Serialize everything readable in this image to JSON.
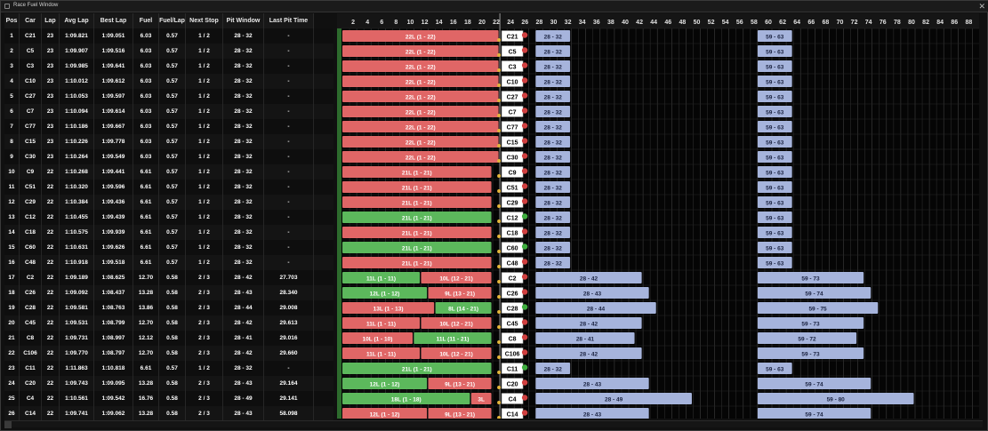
{
  "window": {
    "title": "Race Fuel Window",
    "close": "✕"
  },
  "columns": [
    "Pos",
    "Car",
    "Lap",
    "Avg Lap",
    "Best Lap",
    "Fuel",
    "Fuel/Lap",
    "Next Stop",
    "Pit Window",
    "Last Pit Time"
  ],
  "colors": {
    "green": "#5cb85c",
    "red": "#e06666",
    "window": "#a6b4dc",
    "grid": "#2d2d2d",
    "gridMajor": "#3f3f3f"
  },
  "lap_axis": {
    "min": 1,
    "max": 90,
    "ticks": [
      2,
      4,
      6,
      8,
      10,
      12,
      14,
      16,
      18,
      20,
      22,
      24,
      26,
      28,
      30,
      32,
      34,
      36,
      38,
      40,
      42,
      44,
      46,
      48,
      50,
      52,
      54,
      56,
      58,
      60,
      62,
      64,
      66,
      68,
      70,
      72,
      74,
      76,
      78,
      80,
      82,
      84,
      86,
      88,
      90
    ],
    "current_lap": 22
  },
  "rows": [
    {
      "pos": "1",
      "car": "C21",
      "lap": "23",
      "avg": "1:09.821",
      "best": "1:09.051",
      "fuel": "6.03",
      "fpl": "0.57",
      "next": "1 / 2",
      "pit": "28 - 32",
      "last": "-",
      "stints": [
        {
          "label": "22L (1 - 22)",
          "color": "red",
          "from": 1,
          "to": 22
        }
      ],
      "badge": "C21",
      "pip": "red",
      "windows": [
        {
          "label": "28 - 32",
          "from": 28,
          "to": 32
        },
        {
          "label": "59 - 63",
          "from": 59,
          "to": 63
        }
      ]
    },
    {
      "pos": "2",
      "car": "C5",
      "lap": "23",
      "avg": "1:09.907",
      "best": "1:09.516",
      "fuel": "6.03",
      "fpl": "0.57",
      "next": "1 / 2",
      "pit": "28 - 32",
      "last": "-",
      "stints": [
        {
          "label": "22L (1 - 22)",
          "color": "red",
          "from": 1,
          "to": 22
        }
      ],
      "badge": "C5",
      "pip": "red",
      "windows": [
        {
          "label": "28 - 32",
          "from": 28,
          "to": 32
        },
        {
          "label": "59 - 63",
          "from": 59,
          "to": 63
        }
      ]
    },
    {
      "pos": "3",
      "car": "C3",
      "lap": "23",
      "avg": "1:09.985",
      "best": "1:09.641",
      "fuel": "6.03",
      "fpl": "0.57",
      "next": "1 / 2",
      "pit": "28 - 32",
      "last": "-",
      "stints": [
        {
          "label": "22L (1 - 22)",
          "color": "red",
          "from": 1,
          "to": 22
        }
      ],
      "badge": "C3",
      "pip": "red",
      "windows": [
        {
          "label": "28 - 32",
          "from": 28,
          "to": 32
        },
        {
          "label": "59 - 63",
          "from": 59,
          "to": 63
        }
      ]
    },
    {
      "pos": "4",
      "car": "C10",
      "lap": "23",
      "avg": "1:10.012",
      "best": "1:09.612",
      "fuel": "6.03",
      "fpl": "0.57",
      "next": "1 / 2",
      "pit": "28 - 32",
      "last": "-",
      "stints": [
        {
          "label": "22L (1 - 22)",
          "color": "red",
          "from": 1,
          "to": 22
        }
      ],
      "badge": "C10",
      "pip": "red",
      "windows": [
        {
          "label": "28 - 32",
          "from": 28,
          "to": 32
        },
        {
          "label": "59 - 63",
          "from": 59,
          "to": 63
        }
      ]
    },
    {
      "pos": "5",
      "car": "C27",
      "lap": "23",
      "avg": "1:10.053",
      "best": "1:09.597",
      "fuel": "6.03",
      "fpl": "0.57",
      "next": "1 / 2",
      "pit": "28 - 32",
      "last": "-",
      "stints": [
        {
          "label": "22L (1 - 22)",
          "color": "red",
          "from": 1,
          "to": 22
        }
      ],
      "badge": "C27",
      "pip": "red",
      "windows": [
        {
          "label": "28 - 32",
          "from": 28,
          "to": 32
        },
        {
          "label": "59 - 63",
          "from": 59,
          "to": 63
        }
      ]
    },
    {
      "pos": "6",
      "car": "C7",
      "lap": "23",
      "avg": "1:10.094",
      "best": "1:09.614",
      "fuel": "6.03",
      "fpl": "0.57",
      "next": "1 / 2",
      "pit": "28 - 32",
      "last": "-",
      "stints": [
        {
          "label": "22L (1 - 22)",
          "color": "red",
          "from": 1,
          "to": 22
        }
      ],
      "badge": "C7",
      "pip": "red",
      "windows": [
        {
          "label": "28 - 32",
          "from": 28,
          "to": 32
        },
        {
          "label": "59 - 63",
          "from": 59,
          "to": 63
        }
      ]
    },
    {
      "pos": "7",
      "car": "C77",
      "lap": "23",
      "avg": "1:10.186",
      "best": "1:09.667",
      "fuel": "6.03",
      "fpl": "0.57",
      "next": "1 / 2",
      "pit": "28 - 32",
      "last": "-",
      "stints": [
        {
          "label": "22L (1 - 22)",
          "color": "red",
          "from": 1,
          "to": 22
        }
      ],
      "badge": "C77",
      "pip": "red",
      "windows": [
        {
          "label": "28 - 32",
          "from": 28,
          "to": 32
        },
        {
          "label": "59 - 63",
          "from": 59,
          "to": 63
        }
      ]
    },
    {
      "pos": "8",
      "car": "C15",
      "lap": "23",
      "avg": "1:10.226",
      "best": "1:09.778",
      "fuel": "6.03",
      "fpl": "0.57",
      "next": "1 / 2",
      "pit": "28 - 32",
      "last": "-",
      "stints": [
        {
          "label": "22L (1 - 22)",
          "color": "red",
          "from": 1,
          "to": 22
        }
      ],
      "badge": "C15",
      "pip": "red",
      "windows": [
        {
          "label": "28 - 32",
          "from": 28,
          "to": 32
        },
        {
          "label": "59 - 63",
          "from": 59,
          "to": 63
        }
      ]
    },
    {
      "pos": "9",
      "car": "C30",
      "lap": "23",
      "avg": "1:10.264",
      "best": "1:09.549",
      "fuel": "6.03",
      "fpl": "0.57",
      "next": "1 / 2",
      "pit": "28 - 32",
      "last": "-",
      "stints": [
        {
          "label": "22L (1 - 22)",
          "color": "red",
          "from": 1,
          "to": 22
        }
      ],
      "badge": "C30",
      "pip": "red",
      "windows": [
        {
          "label": "28 - 32",
          "from": 28,
          "to": 32
        },
        {
          "label": "59 - 63",
          "from": 59,
          "to": 63
        }
      ]
    },
    {
      "pos": "10",
      "car": "C9",
      "lap": "22",
      "avg": "1:10.268",
      "best": "1:09.441",
      "fuel": "6.61",
      "fpl": "0.57",
      "next": "1 / 2",
      "pit": "28 - 32",
      "last": "-",
      "stints": [
        {
          "label": "21L (1 - 21)",
          "color": "red",
          "from": 1,
          "to": 21
        }
      ],
      "badge": "C9",
      "pip": "red",
      "windows": [
        {
          "label": "28 - 32",
          "from": 28,
          "to": 32
        },
        {
          "label": "59 - 63",
          "from": 59,
          "to": 63
        }
      ]
    },
    {
      "pos": "11",
      "car": "C51",
      "lap": "22",
      "avg": "1:10.320",
      "best": "1:09.596",
      "fuel": "6.61",
      "fpl": "0.57",
      "next": "1 / 2",
      "pit": "28 - 32",
      "last": "-",
      "stints": [
        {
          "label": "21L (1 - 21)",
          "color": "red",
          "from": 1,
          "to": 21
        }
      ],
      "badge": "C51",
      "pip": "red",
      "windows": [
        {
          "label": "28 - 32",
          "from": 28,
          "to": 32
        },
        {
          "label": "59 - 63",
          "from": 59,
          "to": 63
        }
      ]
    },
    {
      "pos": "12",
      "car": "C29",
      "lap": "22",
      "avg": "1:10.384",
      "best": "1:09.436",
      "fuel": "6.61",
      "fpl": "0.57",
      "next": "1 / 2",
      "pit": "28 - 32",
      "last": "-",
      "stints": [
        {
          "label": "21L (1 - 21)",
          "color": "red",
          "from": 1,
          "to": 21
        }
      ],
      "badge": "C29",
      "pip": "red",
      "windows": [
        {
          "label": "28 - 32",
          "from": 28,
          "to": 32
        },
        {
          "label": "59 - 63",
          "from": 59,
          "to": 63
        }
      ]
    },
    {
      "pos": "13",
      "car": "C12",
      "lap": "22",
      "avg": "1:10.455",
      "best": "1:09.439",
      "fuel": "6.61",
      "fpl": "0.57",
      "next": "1 / 2",
      "pit": "28 - 32",
      "last": "-",
      "stints": [
        {
          "label": "21L (1 - 21)",
          "color": "green",
          "from": 1,
          "to": 21
        }
      ],
      "badge": "C12",
      "pip": "green",
      "windows": [
        {
          "label": "28 - 32",
          "from": 28,
          "to": 32
        },
        {
          "label": "59 - 63",
          "from": 59,
          "to": 63
        }
      ]
    },
    {
      "pos": "14",
      "car": "C18",
      "lap": "22",
      "avg": "1:10.575",
      "best": "1:09.939",
      "fuel": "6.61",
      "fpl": "0.57",
      "next": "1 / 2",
      "pit": "28 - 32",
      "last": "-",
      "stints": [
        {
          "label": "21L (1 - 21)",
          "color": "red",
          "from": 1,
          "to": 21
        }
      ],
      "badge": "C18",
      "pip": "red",
      "windows": [
        {
          "label": "28 - 32",
          "from": 28,
          "to": 32
        },
        {
          "label": "59 - 63",
          "from": 59,
          "to": 63
        }
      ]
    },
    {
      "pos": "15",
      "car": "C60",
      "lap": "22",
      "avg": "1:10.631",
      "best": "1:09.626",
      "fuel": "6.61",
      "fpl": "0.57",
      "next": "1 / 2",
      "pit": "28 - 32",
      "last": "-",
      "stints": [
        {
          "label": "21L (1 - 21)",
          "color": "green",
          "from": 1,
          "to": 21
        }
      ],
      "badge": "C60",
      "pip": "green",
      "windows": [
        {
          "label": "28 - 32",
          "from": 28,
          "to": 32
        },
        {
          "label": "59 - 63",
          "from": 59,
          "to": 63
        }
      ]
    },
    {
      "pos": "16",
      "car": "C48",
      "lap": "22",
      "avg": "1:10.918",
      "best": "1:09.518",
      "fuel": "6.61",
      "fpl": "0.57",
      "next": "1 / 2",
      "pit": "28 - 32",
      "last": "-",
      "stints": [
        {
          "label": "21L (1 - 21)",
          "color": "red",
          "from": 1,
          "to": 21
        }
      ],
      "badge": "C48",
      "pip": "red",
      "windows": [
        {
          "label": "28 - 32",
          "from": 28,
          "to": 32
        },
        {
          "label": "59 - 63",
          "from": 59,
          "to": 63
        }
      ]
    },
    {
      "pos": "17",
      "car": "C2",
      "lap": "22",
      "avg": "1:09.189",
      "best": "1:08.625",
      "fuel": "12.70",
      "fpl": "0.58",
      "next": "2 / 3",
      "pit": "28 - 42",
      "last": "27.703",
      "stints": [
        {
          "label": "11L (1 - 11)",
          "color": "green",
          "from": 1,
          "to": 11
        },
        {
          "label": "10L (12 - 21)",
          "color": "red",
          "from": 12,
          "to": 21
        }
      ],
      "badge": "C2",
      "pip": "red",
      "windows": [
        {
          "label": "28 - 42",
          "from": 28,
          "to": 42
        },
        {
          "label": "59 - 73",
          "from": 59,
          "to": 73
        }
      ]
    },
    {
      "pos": "18",
      "car": "C26",
      "lap": "22",
      "avg": "1:09.092",
      "best": "1:08.437",
      "fuel": "13.28",
      "fpl": "0.58",
      "next": "2 / 3",
      "pit": "28 - 43",
      "last": "28.340",
      "stints": [
        {
          "label": "12L (1 - 12)",
          "color": "green",
          "from": 1,
          "to": 12
        },
        {
          "label": "9L (13 - 21)",
          "color": "red",
          "from": 13,
          "to": 21
        }
      ],
      "badge": "C26",
      "pip": "red",
      "windows": [
        {
          "label": "28 - 43",
          "from": 28,
          "to": 43
        },
        {
          "label": "59 - 74",
          "from": 59,
          "to": 74
        }
      ]
    },
    {
      "pos": "19",
      "car": "C28",
      "lap": "22",
      "avg": "1:09.581",
      "best": "1:08.763",
      "fuel": "13.86",
      "fpl": "0.58",
      "next": "2 / 3",
      "pit": "28 - 44",
      "last": "29.008",
      "stints": [
        {
          "label": "13L (1 - 13)",
          "color": "red",
          "from": 1,
          "to": 13
        },
        {
          "label": "8L (14 - 21)",
          "color": "green",
          "from": 14,
          "to": 21
        }
      ],
      "badge": "C28",
      "pip": "green",
      "windows": [
        {
          "label": "28 - 44",
          "from": 28,
          "to": 44
        },
        {
          "label": "59 - 75",
          "from": 59,
          "to": 75
        }
      ]
    },
    {
      "pos": "20",
      "car": "C45",
      "lap": "22",
      "avg": "1:09.531",
      "best": "1:08.799",
      "fuel": "12.70",
      "fpl": "0.58",
      "next": "2 / 3",
      "pit": "28 - 42",
      "last": "29.613",
      "stints": [
        {
          "label": "11L (1 - 11)",
          "color": "red",
          "from": 1,
          "to": 11
        },
        {
          "label": "10L (12 - 21)",
          "color": "red",
          "from": 12,
          "to": 21
        }
      ],
      "badge": "C45",
      "pip": "red",
      "windows": [
        {
          "label": "28 - 42",
          "from": 28,
          "to": 42
        },
        {
          "label": "59 - 73",
          "from": 59,
          "to": 73
        }
      ]
    },
    {
      "pos": "21",
      "car": "C8",
      "lap": "22",
      "avg": "1:09.731",
      "best": "1:08.997",
      "fuel": "12.12",
      "fpl": "0.58",
      "next": "2 / 3",
      "pit": "28 - 41",
      "last": "29.016",
      "stints": [
        {
          "label": "10L (1 - 10)",
          "color": "red",
          "from": 1,
          "to": 10
        },
        {
          "label": "11L (11 - 21)",
          "color": "green",
          "from": 11,
          "to": 21
        }
      ],
      "badge": "C8",
      "pip": "red",
      "windows": [
        {
          "label": "28 - 41",
          "from": 28,
          "to": 41
        },
        {
          "label": "59 - 72",
          "from": 59,
          "to": 72
        }
      ]
    },
    {
      "pos": "22",
      "car": "C106",
      "lap": "22",
      "avg": "1:09.770",
      "best": "1:08.797",
      "fuel": "12.70",
      "fpl": "0.58",
      "next": "2 / 3",
      "pit": "28 - 42",
      "last": "29.660",
      "stints": [
        {
          "label": "11L (1 - 11)",
          "color": "red",
          "from": 1,
          "to": 11
        },
        {
          "label": "10L (12 - 21)",
          "color": "red",
          "from": 12,
          "to": 21
        }
      ],
      "badge": "C106",
      "pip": "red",
      "windows": [
        {
          "label": "28 - 42",
          "from": 28,
          "to": 42
        },
        {
          "label": "59 - 73",
          "from": 59,
          "to": 73
        }
      ]
    },
    {
      "pos": "23",
      "car": "C11",
      "lap": "22",
      "avg": "1:11.863",
      "best": "1:10.818",
      "fuel": "6.61",
      "fpl": "0.57",
      "next": "1 / 2",
      "pit": "28 - 32",
      "last": "-",
      "stints": [
        {
          "label": "21L (1 - 21)",
          "color": "green",
          "from": 1,
          "to": 21
        }
      ],
      "badge": "C11",
      "pip": "green",
      "windows": [
        {
          "label": "28 - 32",
          "from": 28,
          "to": 32
        },
        {
          "label": "59 - 63",
          "from": 59,
          "to": 63
        }
      ]
    },
    {
      "pos": "24",
      "car": "C20",
      "lap": "22",
      "avg": "1:09.743",
      "best": "1:09.095",
      "fuel": "13.28",
      "fpl": "0.58",
      "next": "2 / 3",
      "pit": "28 - 43",
      "last": "29.164",
      "stints": [
        {
          "label": "12L (1 - 12)",
          "color": "green",
          "from": 1,
          "to": 12
        },
        {
          "label": "9L (13 - 21)",
          "color": "red",
          "from": 13,
          "to": 21
        }
      ],
      "badge": "C20",
      "pip": "red",
      "windows": [
        {
          "label": "28 - 43",
          "from": 28,
          "to": 43
        },
        {
          "label": "59 - 74",
          "from": 59,
          "to": 74
        }
      ]
    },
    {
      "pos": "25",
      "car": "C4",
      "lap": "22",
      "avg": "1:10.561",
      "best": "1:09.542",
      "fuel": "16.76",
      "fpl": "0.58",
      "next": "2 / 3",
      "pit": "28 - 49",
      "last": "29.141",
      "stints": [
        {
          "label": "18L (1 - 18)",
          "color": "green",
          "from": 1,
          "to": 18
        },
        {
          "label": "3L",
          "color": "red",
          "from": 19,
          "to": 21
        }
      ],
      "badge": "C4",
      "pip": "red",
      "windows": [
        {
          "label": "28 - 49",
          "from": 28,
          "to": 49
        },
        {
          "label": "59 - 80",
          "from": 59,
          "to": 80
        }
      ]
    },
    {
      "pos": "26",
      "car": "C14",
      "lap": "22",
      "avg": "1:09.741",
      "best": "1:09.062",
      "fuel": "13.28",
      "fpl": "0.58",
      "next": "2 / 3",
      "pit": "28 - 43",
      "last": "58.098",
      "stints": [
        {
          "label": "12L (1 - 12)",
          "color": "red",
          "from": 1,
          "to": 12
        },
        {
          "label": "9L (13 - 21)",
          "color": "red",
          "from": 13,
          "to": 21
        }
      ],
      "badge": "C14",
      "pip": "red",
      "windows": [
        {
          "label": "28 - 43",
          "from": 28,
          "to": 43
        },
        {
          "label": "59 - 74",
          "from": 59,
          "to": 74
        }
      ]
    }
  ]
}
